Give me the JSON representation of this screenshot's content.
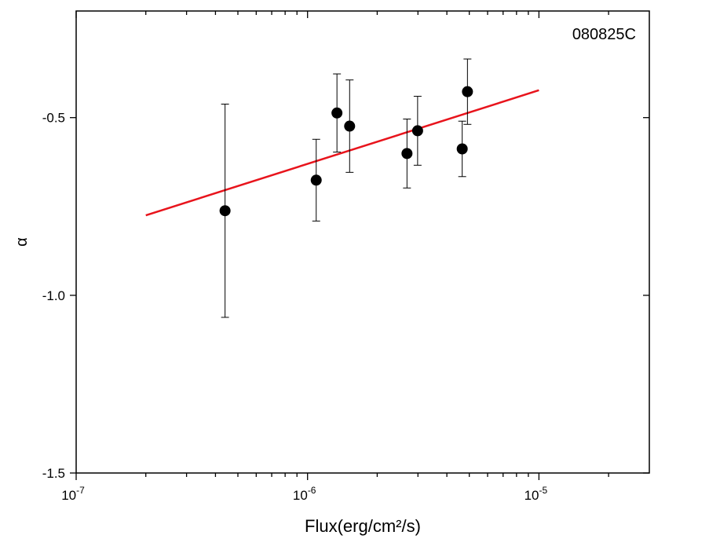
{
  "chart_data": {
    "type": "scatter",
    "annotation": "080825C",
    "x_label": "Flux(erg/cm²/s)",
    "y_label": "α",
    "log_x": true,
    "xlim": [
      1e-07,
      3e-05
    ],
    "ylim": [
      -1.5,
      -0.2
    ],
    "xticks": [
      {
        "value": 1e-07,
        "label": "10",
        "power": "-7"
      },
      {
        "value": 1e-06,
        "label": "10",
        "power": "-6"
      },
      {
        "value": 1e-05,
        "label": "10",
        "power": "-5"
      }
    ],
    "xminorticks": [
      2e-07,
      3e-07,
      4e-07,
      5e-07,
      6e-07,
      7e-07,
      8e-07,
      9e-07,
      2e-06,
      3e-06,
      4e-06,
      5e-06,
      6e-06,
      7e-06,
      8e-06,
      9e-06,
      2e-05
    ],
    "yticks": [
      -1.5,
      {
        "value": -1,
        "label": "-1.0"
      },
      -0.5
    ],
    "series": [
      {
        "color": "#000000",
        "x": [
          4.4e-07,
          1.09e-06,
          1.34e-06,
          1.52e-06,
          2.69e-06,
          2.99e-06,
          4.66e-06,
          4.91e-06
        ],
        "values": [
          -0.762,
          -0.676,
          -0.487,
          -0.524,
          -0.601,
          -0.537,
          -0.588,
          -0.427
        ],
        "errors": [
          0.3,
          0.115,
          0.11,
          0.13,
          0.097,
          0.097,
          0.078,
          0.092
        ]
      }
    ],
    "fit": {
      "color": "#e8141c",
      "x": [
        2e-07,
        1e-05
      ],
      "values": [
        -0.775,
        -0.423
      ]
    }
  }
}
